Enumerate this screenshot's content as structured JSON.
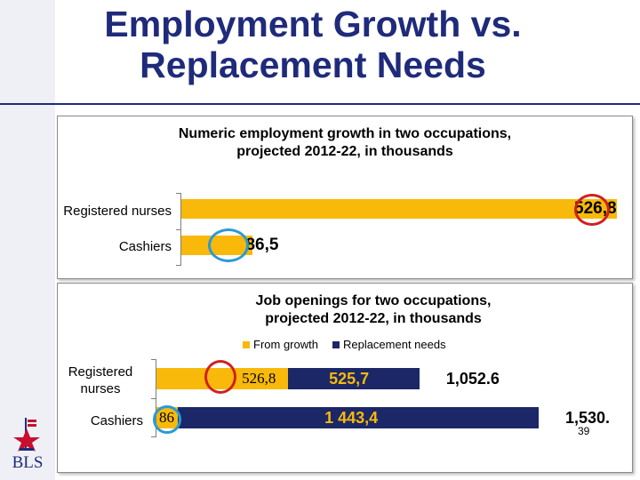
{
  "slide": {
    "title_line1": "Employment Growth vs.",
    "title_line2": "Replacement Needs",
    "page_number": "39",
    "logo_text": "BLS"
  },
  "chart_data": [
    {
      "type": "bar",
      "orientation": "horizontal",
      "title_line1": "Numeric employment growth in two occupations,",
      "title_line2": "projected 2012-22, in thousands",
      "categories": [
        "Registered nurses",
        "Cashiers"
      ],
      "values": [
        526.8,
        86.5
      ],
      "data_labels": [
        "526,8",
        "86,5"
      ],
      "grid": false,
      "legend": "none"
    },
    {
      "type": "bar",
      "orientation": "horizontal",
      "stacked": true,
      "title_line1": "Job openings for two occupations,",
      "title_line2": "projected 2012-22, in thousands",
      "categories": [
        "Registered nurses",
        "Cashiers"
      ],
      "category_lines": [
        [
          "Registered",
          "nurses"
        ],
        [
          "Cashiers"
        ]
      ],
      "series": [
        {
          "name": "From growth",
          "values": [
            526.8,
            86.5
          ],
          "data_labels": [
            "526,8",
            "86"
          ]
        },
        {
          "name": "Replacement needs",
          "values": [
            525.7,
            1443.4
          ],
          "data_labels": [
            "525,7",
            "1 443,4"
          ]
        }
      ],
      "totals": [
        "1,052.6",
        "1,530."
      ],
      "grid": false,
      "legend": "top"
    }
  ],
  "colors": {
    "growth": "#f8b90a",
    "replacement": "#1b2766",
    "title": "#1f2b7a",
    "highlight_red": "#d11f1f",
    "highlight_blue": "#2b9ad6"
  }
}
